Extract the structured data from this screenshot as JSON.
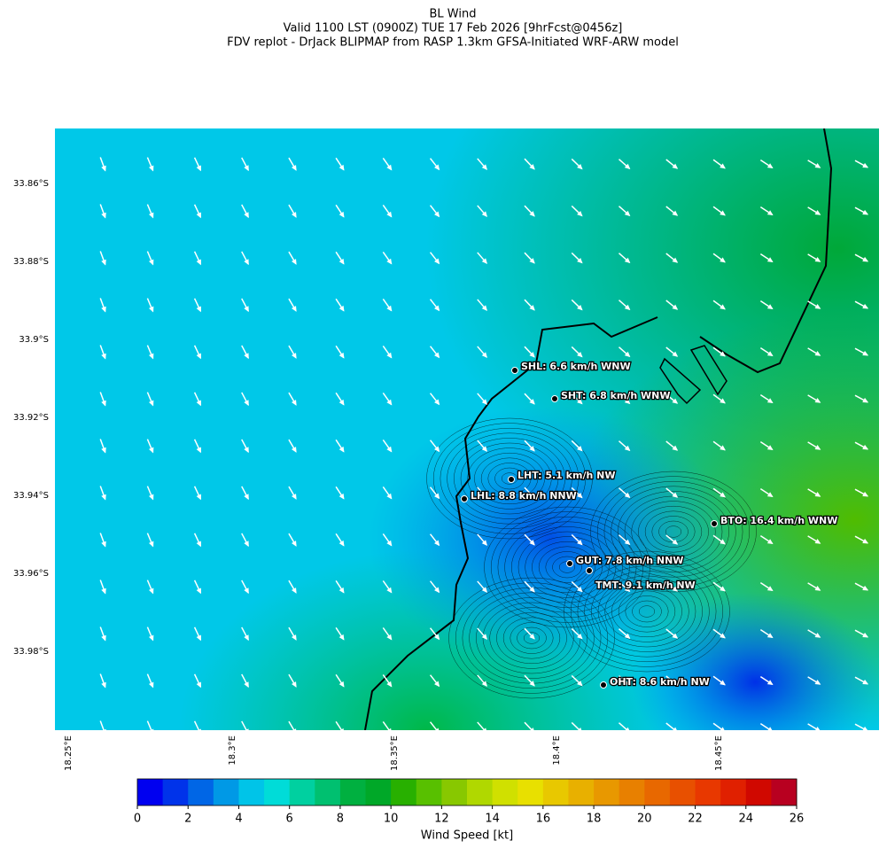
{
  "title": "BL Wind",
  "subtitle": [
    "Valid 1100 LST (0900Z) TUE 17 Feb 2026 [9hrFcst@0456z]",
    "FDV replot - DrJack BLIPMAP from RASP 1.3km GFSA-Initiated WRF-ARW model"
  ],
  "map": {
    "lat_labels": [
      "33.86°S",
      "33.88°S",
      "33.9°S",
      "33.92°S",
      "33.94°S",
      "33.96°S",
      "33.98°S"
    ],
    "lon_labels": [
      "18.25°E",
      "18.3°E",
      "18.35°E",
      "18.4°E",
      "18.45°E"
    ],
    "stations": [
      "SHL: 6.6 km/h WNW",
      "SHT: 6.8 km/h WNW",
      "LHT: 5.1 km/h NW",
      "LHL: 8.8 km/h NNW",
      "BTO: 16.4 km/h WNW",
      "GUT: 7.8 km/h NNW",
      "TMT: 9.1 km/h NW",
      "OHT: 8.6 km/h NW"
    ]
  },
  "colorbar": {
    "label": "Wind Speed [kt]",
    "ticks": [
      0,
      2,
      4,
      6,
      8,
      10,
      12,
      14,
      16,
      18,
      20,
      22,
      24,
      26
    ],
    "colors": [
      "#0000f0",
      "#0033ea",
      "#0066e6",
      "#0099e6",
      "#00c4e8",
      "#00dcd8",
      "#00d0a0",
      "#00c070",
      "#00b040",
      "#00a828",
      "#28b000",
      "#58c000",
      "#88c800",
      "#b0d800",
      "#d0e000",
      "#e8e000",
      "#e8c800",
      "#e8b000",
      "#e89800",
      "#e88000",
      "#e86800",
      "#e85000",
      "#e83800",
      "#e02000",
      "#d00800",
      "#b80020"
    ]
  }
}
